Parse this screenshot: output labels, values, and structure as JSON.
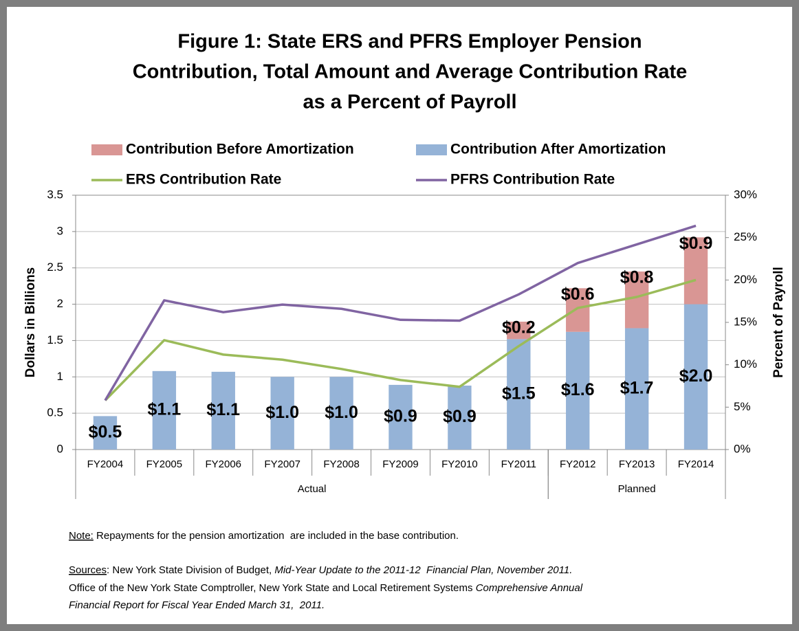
{
  "chart_data": {
    "type": "bar",
    "title": [
      "Figure 1: State ERS and PFRS Employer Pension",
      "Contribution, Total Amount and Average Contribution Rate",
      "as a Percent of Payroll"
    ],
    "y_label": "Dollars in Billions",
    "y2_label": "Percent of Payroll",
    "categories": [
      "FY2004",
      "FY2005",
      "FY2006",
      "FY2007",
      "FY2008",
      "FY2009",
      "FY2010",
      "FY2011",
      "FY2012",
      "FY2013",
      "FY2014"
    ],
    "groups": [
      {
        "name": "Actual",
        "from": "FY2004",
        "to": "FY2011"
      },
      {
        "name": "Planned",
        "from": "FY2012",
        "to": "FY2014"
      }
    ],
    "series": [
      {
        "name": "Contribution Before Amortization",
        "type": "bar",
        "color": "#d99694",
        "values": [
          null,
          null,
          null,
          null,
          null,
          null,
          null,
          0.24,
          0.6,
          0.78,
          0.92
        ],
        "value_labels": [
          null,
          null,
          null,
          null,
          null,
          null,
          null,
          "$0.2",
          "$0.6",
          "$0.8",
          "$0.9"
        ]
      },
      {
        "name": "Contribution After Amortization",
        "type": "bar",
        "color": "#95b3d7",
        "values": [
          0.46,
          1.08,
          1.07,
          1.0,
          1.0,
          0.89,
          0.88,
          1.52,
          1.62,
          1.67,
          2.0
        ],
        "value_labels": [
          "$0.5",
          "$1.1",
          "$1.1",
          "$1.0",
          "$1.0",
          "$0.9",
          "$0.9",
          "$1.5",
          "$1.6",
          "$1.7",
          "$2.0"
        ]
      },
      {
        "name": "ERS Contribution Rate",
        "type": "line",
        "axis": "y2",
        "color": "#9bbb59",
        "values": [
          5.8,
          12.9,
          11.2,
          10.6,
          9.5,
          8.2,
          7.4,
          12.2,
          16.7,
          18.0,
          20.0
        ]
      },
      {
        "name": "PFRS Contribution Rate",
        "type": "line",
        "axis": "y2",
        "color": "#8064a2",
        "values": [
          5.8,
          17.6,
          16.2,
          17.1,
          16.6,
          15.3,
          15.2,
          18.3,
          22.0,
          24.2,
          26.4
        ]
      }
    ],
    "ylim": [
      0,
      3.5
    ],
    "yticks": [
      0,
      0.5,
      1,
      1.5,
      2,
      2.5,
      3,
      3.5
    ],
    "y2lim": [
      0,
      30
    ],
    "y2ticks": [
      {
        "value": 0,
        "label": "0%"
      },
      {
        "value": 5,
        "label": "5%"
      },
      {
        "value": 10,
        "label": "10%"
      },
      {
        "value": 15,
        "label": "15%"
      },
      {
        "value": 20,
        "label": "20%"
      },
      {
        "value": 25,
        "label": "25%"
      },
      {
        "value": 30,
        "label": "30%"
      }
    ],
    "grid": true,
    "legend": "top"
  },
  "footnotes": [
    [
      {
        "text": "Note:",
        "style": "underline"
      },
      {
        "text": " Repayments for the pension amortization  are included in the base contribution.",
        "style": "normal"
      }
    ],
    [
      {
        "text": "Sources",
        "style": "underline"
      },
      {
        "text": ": New York State Division of Budget, ",
        "style": "normal"
      },
      {
        "text": "Mid-Year Update to the 2011-12  Financial Plan, November 2011.",
        "style": "italic"
      }
    ],
    [
      {
        "text": "Office of the New York State Comptroller, New York State and Local Retirement Systems ",
        "style": "normal"
      },
      {
        "text": "Comprehensive Annual",
        "style": "italic"
      }
    ],
    [
      {
        "text": "Financial Report for Fiscal Year Ended March 31,  2011.",
        "style": "italic"
      }
    ]
  ]
}
